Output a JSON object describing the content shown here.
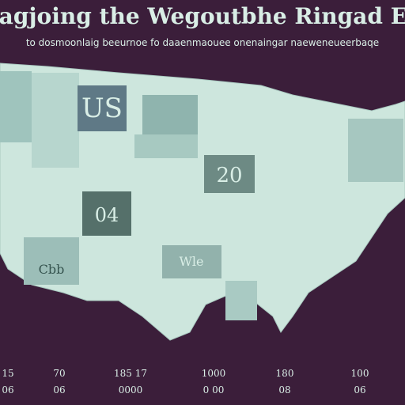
{
  "header": {
    "title": "S Nwagjoing the Wegoutbhe Ringad E Wou",
    "subtitle": "to dosmoonlaig beeurnoe fo daaenmaouee onenaingar naeweneueerbaqe"
  },
  "map": {
    "labels": [
      "US",
      "20",
      "04",
      "Cbb",
      "Wle"
    ]
  },
  "footer": {
    "columns": [
      {
        "top": "15",
        "bottom": "06"
      },
      {
        "top": "70",
        "bottom": "06"
      },
      {
        "top": "185 17",
        "bottom": "0000"
      },
      {
        "top": "1000",
        "bottom": "0 00"
      },
      {
        "top": "180",
        "bottom": "08"
      },
      {
        "top": "100",
        "bottom": "06"
      }
    ]
  }
}
